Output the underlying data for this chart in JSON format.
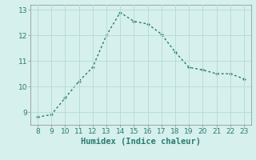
{
  "x": [
    8,
    9,
    10,
    11,
    12,
    13,
    14,
    15,
    16,
    17,
    18,
    19,
    20,
    21,
    22,
    23
  ],
  "y": [
    8.8,
    8.9,
    9.55,
    10.2,
    10.75,
    12.0,
    12.9,
    12.55,
    12.45,
    12.05,
    11.35,
    10.75,
    10.65,
    10.5,
    10.5,
    10.3
  ],
  "xlim": [
    7.5,
    23.5
  ],
  "ylim": [
    8.5,
    13.2
  ],
  "xticks": [
    8,
    9,
    10,
    11,
    12,
    13,
    14,
    15,
    16,
    17,
    18,
    19,
    20,
    21,
    22,
    23
  ],
  "yticks": [
    9,
    10,
    11,
    12,
    13
  ],
  "xlabel": "Humidex (Indice chaleur)",
  "line_color": "#2a7a70",
  "marker_color": "#2a7a70",
  "bg_color": "#d6f0ed",
  "grid_color": "#b8ddd8",
  "tick_fontsize": 6.5,
  "xlabel_fontsize": 7.5,
  "marker_size": 3,
  "line_width": 1.0
}
